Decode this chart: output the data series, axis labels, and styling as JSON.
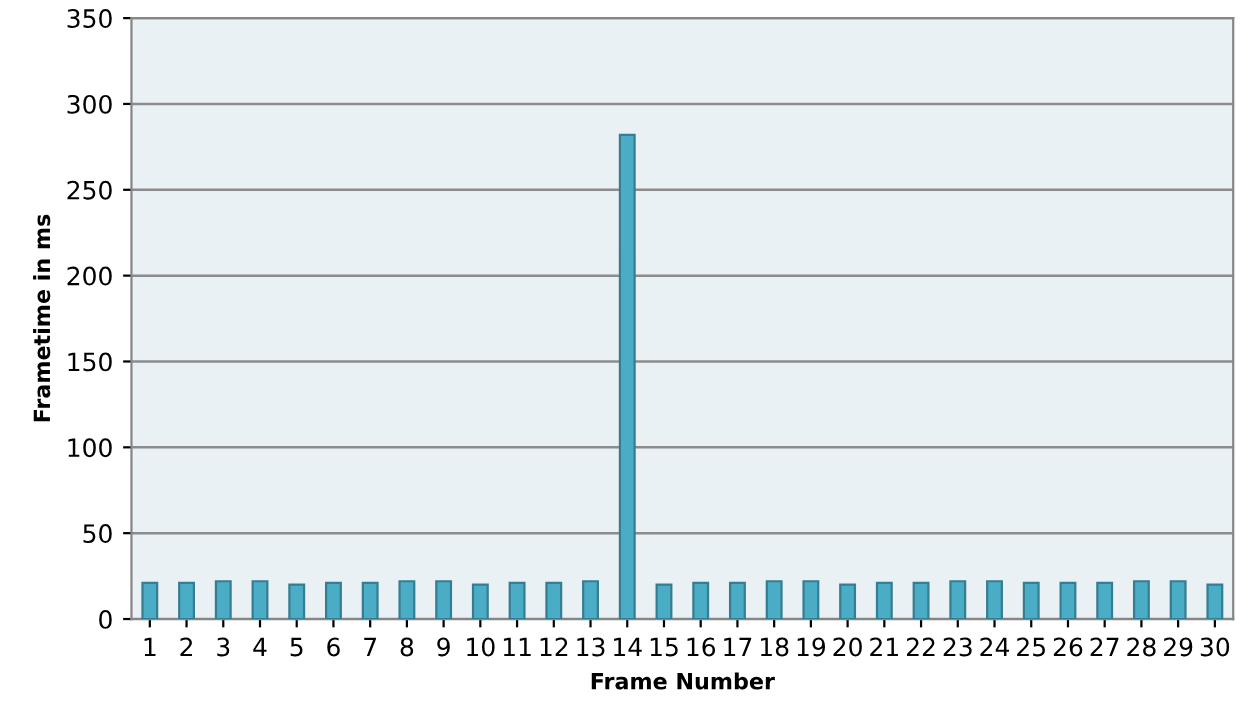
{
  "chart_data": {
    "type": "bar",
    "xlabel": "Frame Number",
    "ylabel": "Frametime in ms",
    "categories": [
      "1",
      "2",
      "3",
      "4",
      "5",
      "6",
      "7",
      "8",
      "9",
      "10",
      "11",
      "12",
      "13",
      "14",
      "15",
      "16",
      "17",
      "18",
      "19",
      "20",
      "21",
      "22",
      "23",
      "24",
      "25",
      "26",
      "27",
      "28",
      "29",
      "30"
    ],
    "values": [
      21,
      21,
      22,
      22,
      20,
      21,
      21,
      22,
      22,
      20,
      21,
      21,
      22,
      282,
      20,
      21,
      21,
      22,
      22,
      20,
      21,
      21,
      22,
      22,
      21,
      21,
      21,
      22,
      22,
      20
    ],
    "color": "#4bacc6",
    "ylim": [
      0,
      350
    ],
    "yticks": [
      0,
      50,
      100,
      150,
      200,
      250,
      300,
      350
    ],
    "grid": "y",
    "legend": false
  }
}
